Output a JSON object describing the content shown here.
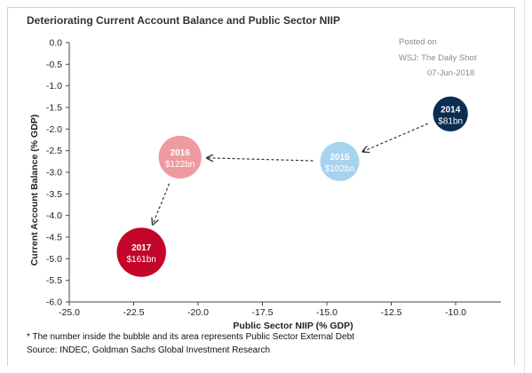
{
  "title": "Deteriorating Current Account Balance and Public Sector NIIP",
  "watermark": {
    "line1": "Posted on",
    "line2": "WSJ: The Daily Shot",
    "line3": "07-Jun-2018"
  },
  "footnote": "* The number inside the bubble and its area represents Public Sector External Debt",
  "source": "Source: INDEC, Goldman Sachs Global Investment Research",
  "chart_data": {
    "type": "scatter",
    "subtype": "bubble",
    "title": "Deteriorating Current Account Balance and Public Sector NIIP",
    "xlabel": "Public Sector NIIP (% GDP)",
    "ylabel": "Current Account Balance (% GDP)",
    "xlim": [
      -25.0,
      -9.0
    ],
    "ylim": [
      -6.0,
      0.0
    ],
    "xticks": [
      "-25.0",
      "-22.5",
      "-20.0",
      "-17.5",
      "-15.0",
      "-12.5",
      "-10.0"
    ],
    "yticks": [
      "0.0",
      "-0.5",
      "-1.0",
      "-1.5",
      "-2.0",
      "-2.5",
      "-3.0",
      "-3.5",
      "-4.0",
      "-4.5",
      "-5.0",
      "-5.5",
      "-6.0"
    ],
    "xtick_values": [
      -25.0,
      -22.5,
      -20.0,
      -17.5,
      -15.0,
      -12.5,
      -10.0
    ],
    "ytick_values": [
      0.0,
      -0.5,
      -1.0,
      -1.5,
      -2.0,
      -2.5,
      -3.0,
      -3.5,
      -4.0,
      -4.5,
      -5.0,
      -5.5,
      -6.0
    ],
    "grid": false,
    "points": [
      {
        "year": "2014",
        "label": "$81bn",
        "size": 81,
        "x": -10.2,
        "y": -1.65,
        "color": "#0b2d52"
      },
      {
        "year": "2015",
        "label": "$102bn",
        "size": 102,
        "x": -14.5,
        "y": -2.75,
        "color": "#a8d3ef"
      },
      {
        "year": "2016",
        "label": "$122bn",
        "size": 122,
        "x": -20.7,
        "y": -2.65,
        "color": "#ef9aa0"
      },
      {
        "year": "2017",
        "label": "$161bn",
        "size": 161,
        "x": -22.2,
        "y": -4.85,
        "color": "#c3052a"
      }
    ],
    "arrows": [
      {
        "from": "2014",
        "to": "2015"
      },
      {
        "from": "2015",
        "to": "2016"
      },
      {
        "from": "2016",
        "to": "2017"
      }
    ]
  }
}
